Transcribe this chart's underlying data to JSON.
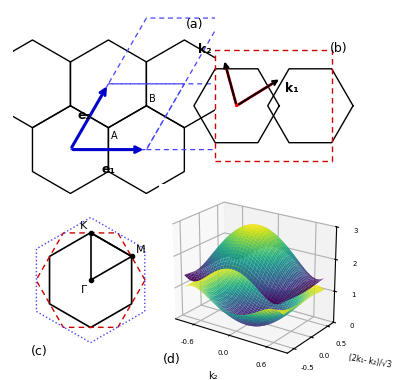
{
  "fig_width": 4.74,
  "fig_height": 3.71,
  "bg_color": "#ffffff",
  "panel_a": {
    "label": "(a)",
    "hex_color": "#000000",
    "dashed_color": "#4444ff",
    "arrow_color": "#0000cc",
    "e1_label": "e₁",
    "e2_label": "e₂",
    "A_label": "A",
    "B_label": "B"
  },
  "panel_b": {
    "label": "(b)",
    "hex_color": "#000000",
    "dashed_color": "#cc0000",
    "arrow_color": "#000000",
    "red_color": "#cc0000",
    "k1_label": "k₁",
    "k2_label": "k₂"
  },
  "panel_c": {
    "label": "(c)",
    "hex_color": "#000000",
    "dashed_red_color": "#cc0000",
    "dotted_blue_color": "#4444ff",
    "K_label": "K",
    "M_label": "M",
    "Gamma_label": "Γ"
  },
  "panel_d": {
    "label": "(d)",
    "xlabel": "k₂",
    "ylabel": "(2k₁- k₂)/√3",
    "zlabel": ""
  }
}
